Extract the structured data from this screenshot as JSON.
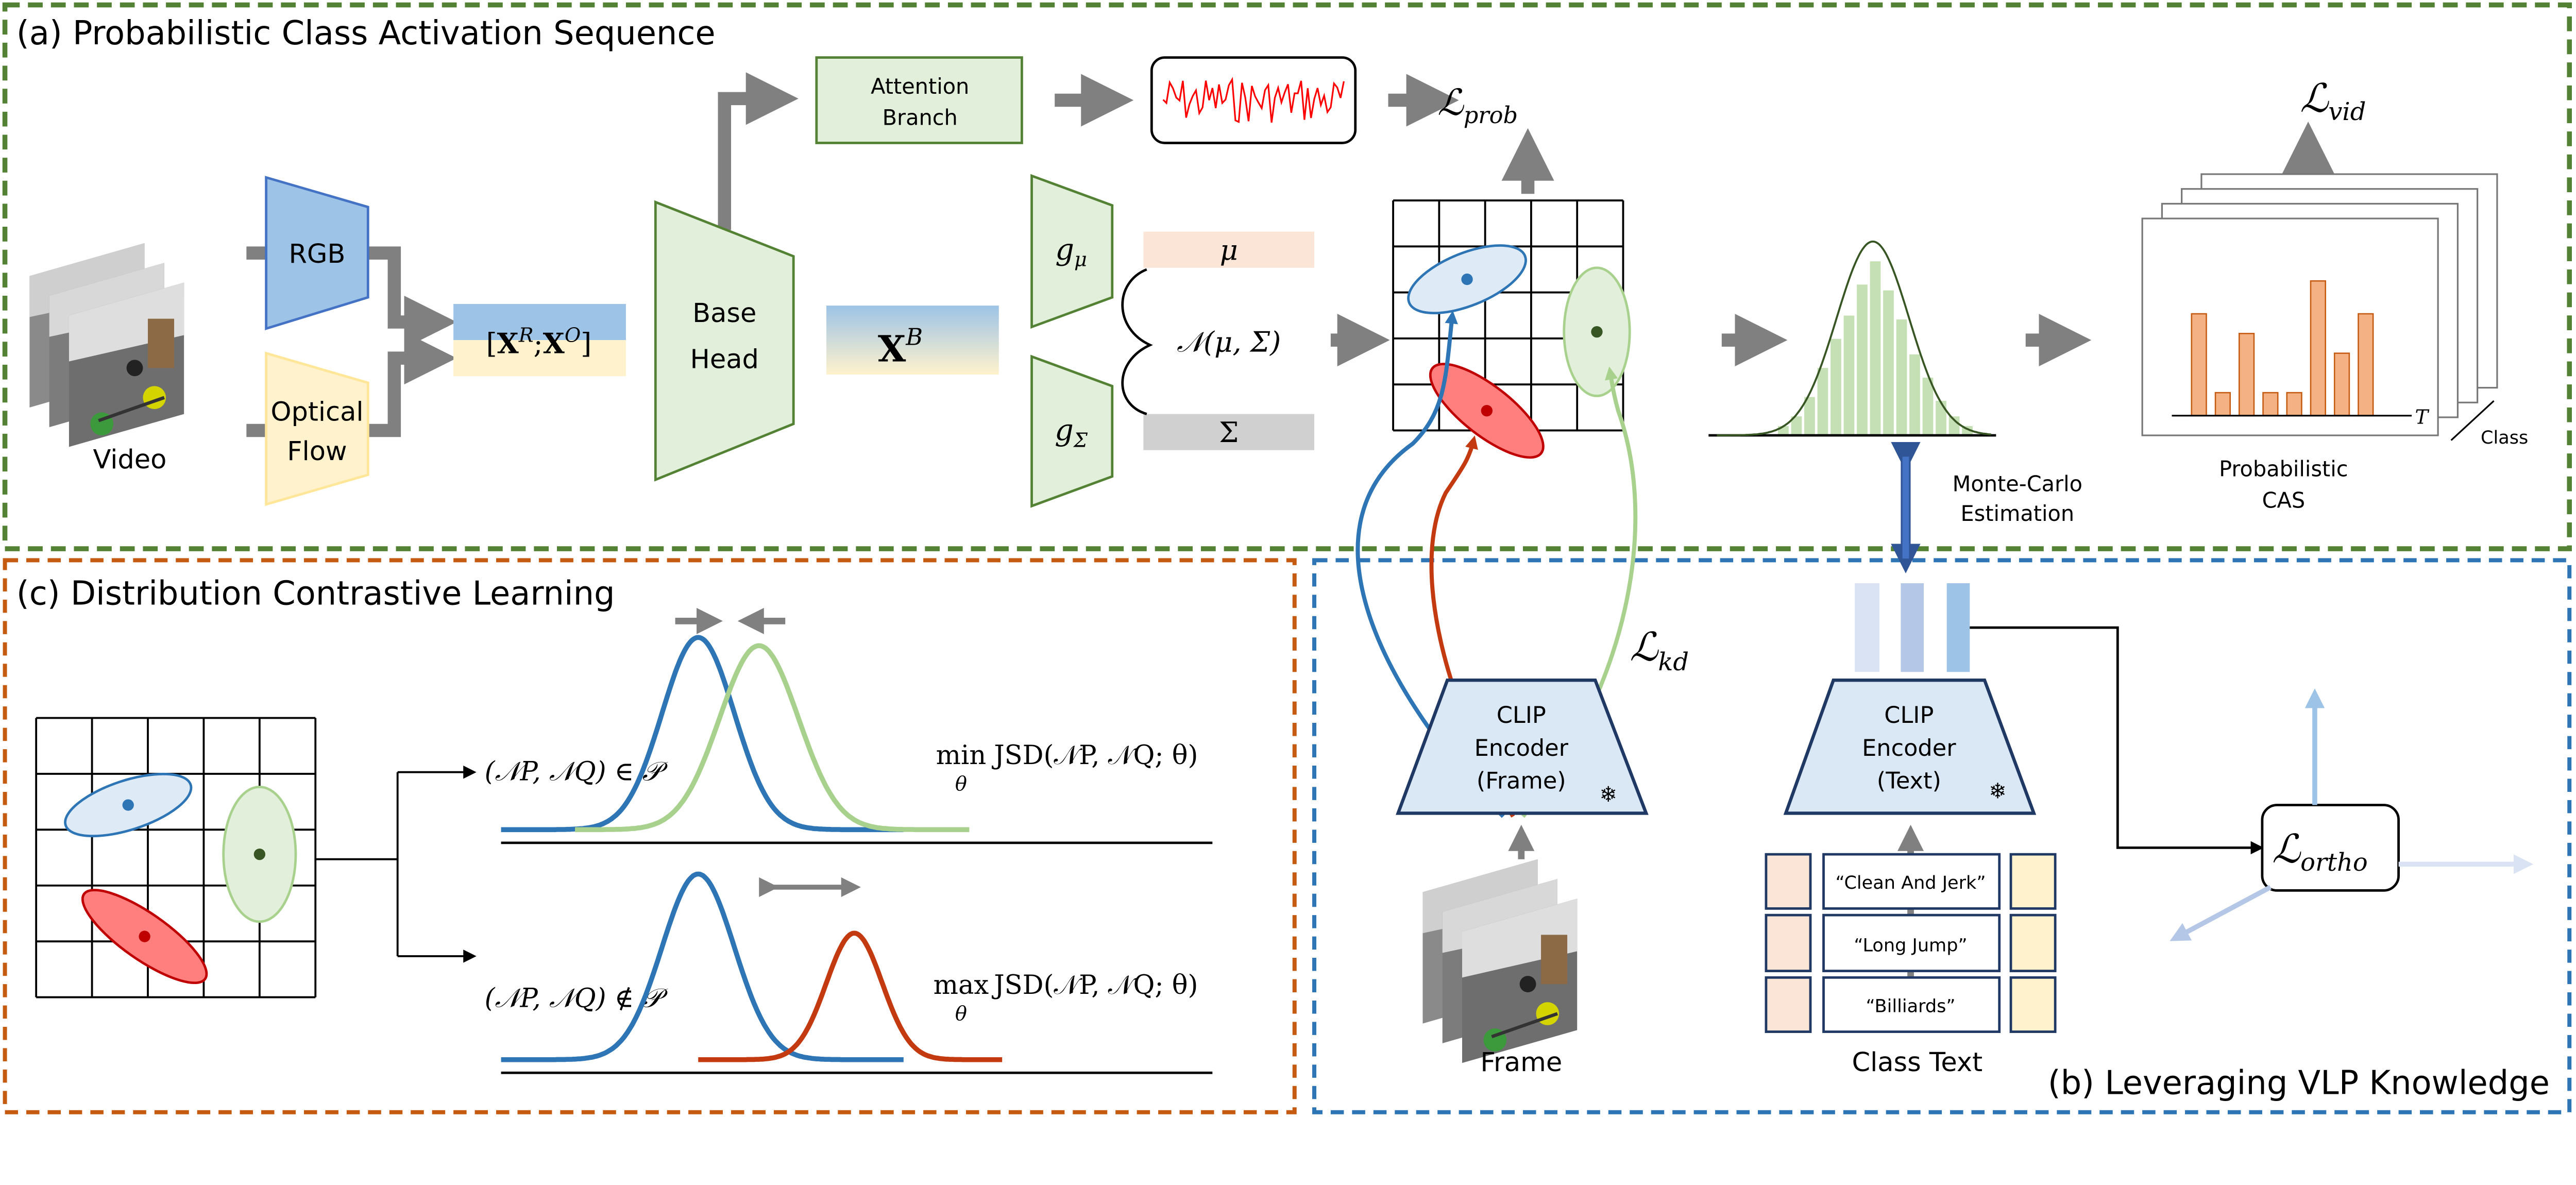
{
  "panels": {
    "a": {
      "title": "(a) Probabilistic Class Activation Sequence",
      "color": "#548235"
    },
    "b": {
      "title": "(b) Leveraging VLP Knowledge",
      "color": "#2E75B6"
    },
    "c": {
      "title": "(c) Distribution Contrastive Learning",
      "color": "#C55A11"
    }
  },
  "panel_a": {
    "video_label": "Video",
    "rgb_label": "RGB",
    "flow_label_1": "Optical",
    "flow_label_2": "Flow",
    "concat_feature": {
      "open": "[",
      "x1": "X",
      "sup1": "R",
      "sep": ";",
      "x2": "X",
      "sup2": "O",
      "close": "]"
    },
    "base_head_1": "Base",
    "base_head_2": "Head",
    "attention_1": "Attention",
    "attention_2": "Branch",
    "base_feature": {
      "x": "X",
      "sup": "B"
    },
    "g_mu": {
      "g": "g",
      "sub": "μ"
    },
    "g_sigma": {
      "g": "g",
      "sub": "Σ"
    },
    "mu_label": "μ",
    "sigma_label": "Σ",
    "normal_label": "𝒩(μ, Σ)",
    "loss_prob": {
      "symbol": "ℒ",
      "sub": "prob"
    },
    "loss_vid": {
      "symbol": "ℒ",
      "sub": "vid"
    },
    "monte_carlo_1": "Monte-Carlo",
    "monte_carlo_2": "Estimation",
    "cas_label_1": "Probabilistic",
    "cas_label_2": "CAS",
    "cas_axis_t": "T",
    "cas_axis_class": "Class",
    "cas_bar_levels": [
      0.62,
      0.14,
      0.5,
      0.14,
      0.14,
      0.82,
      0.38,
      0.62
    ],
    "histogram_bar_levels": [
      0.05,
      0.1,
      0.2,
      0.35,
      0.5,
      0.62,
      0.78,
      0.9,
      0.75,
      0.6,
      0.42,
      0.3,
      0.18,
      0.1,
      0.05
    ]
  },
  "panel_b": {
    "clip_frame": [
      "CLIP",
      "Encoder",
      "(Frame)"
    ],
    "clip_text": [
      "CLIP",
      "Encoder",
      "(Text)"
    ],
    "frozen_icon": "snowflake-icon",
    "frame_label": "Frame",
    "class_text_label": "Class Text",
    "class_texts": [
      "“Clean And Jerk”",
      "“Long Jump”",
      "“Billiards”"
    ],
    "loss_kd": {
      "symbol": "ℒ",
      "sub": "kd"
    },
    "loss_ortho": {
      "symbol": "ℒ",
      "sub": "ortho"
    }
  },
  "panel_c": {
    "positive_pair": "(𝒩P, 𝒩Q) ∈ 𝒫",
    "negative_pair": "(𝒩P, 𝒩Q) ∉ 𝒫",
    "min_objective": {
      "op": "min",
      "var": "θ",
      "expr": "JSD(𝒩P, 𝒩Q; θ)"
    },
    "max_objective": {
      "op": "max",
      "var": "θ",
      "expr": "JSD(𝒩P, 𝒩Q; θ)"
    }
  },
  "colors": {
    "blue": "#2E75B6",
    "green": "#A9D18E",
    "red": "#C33A10",
    "gray_arrow": "#808080",
    "rgb_fill": "#9DC3E6",
    "flow_fill": "#FFF2CC",
    "module_green": "#E2EFDA",
    "clip_fill": "#DAE8F5",
    "cas_bar": "#F4B183"
  }
}
